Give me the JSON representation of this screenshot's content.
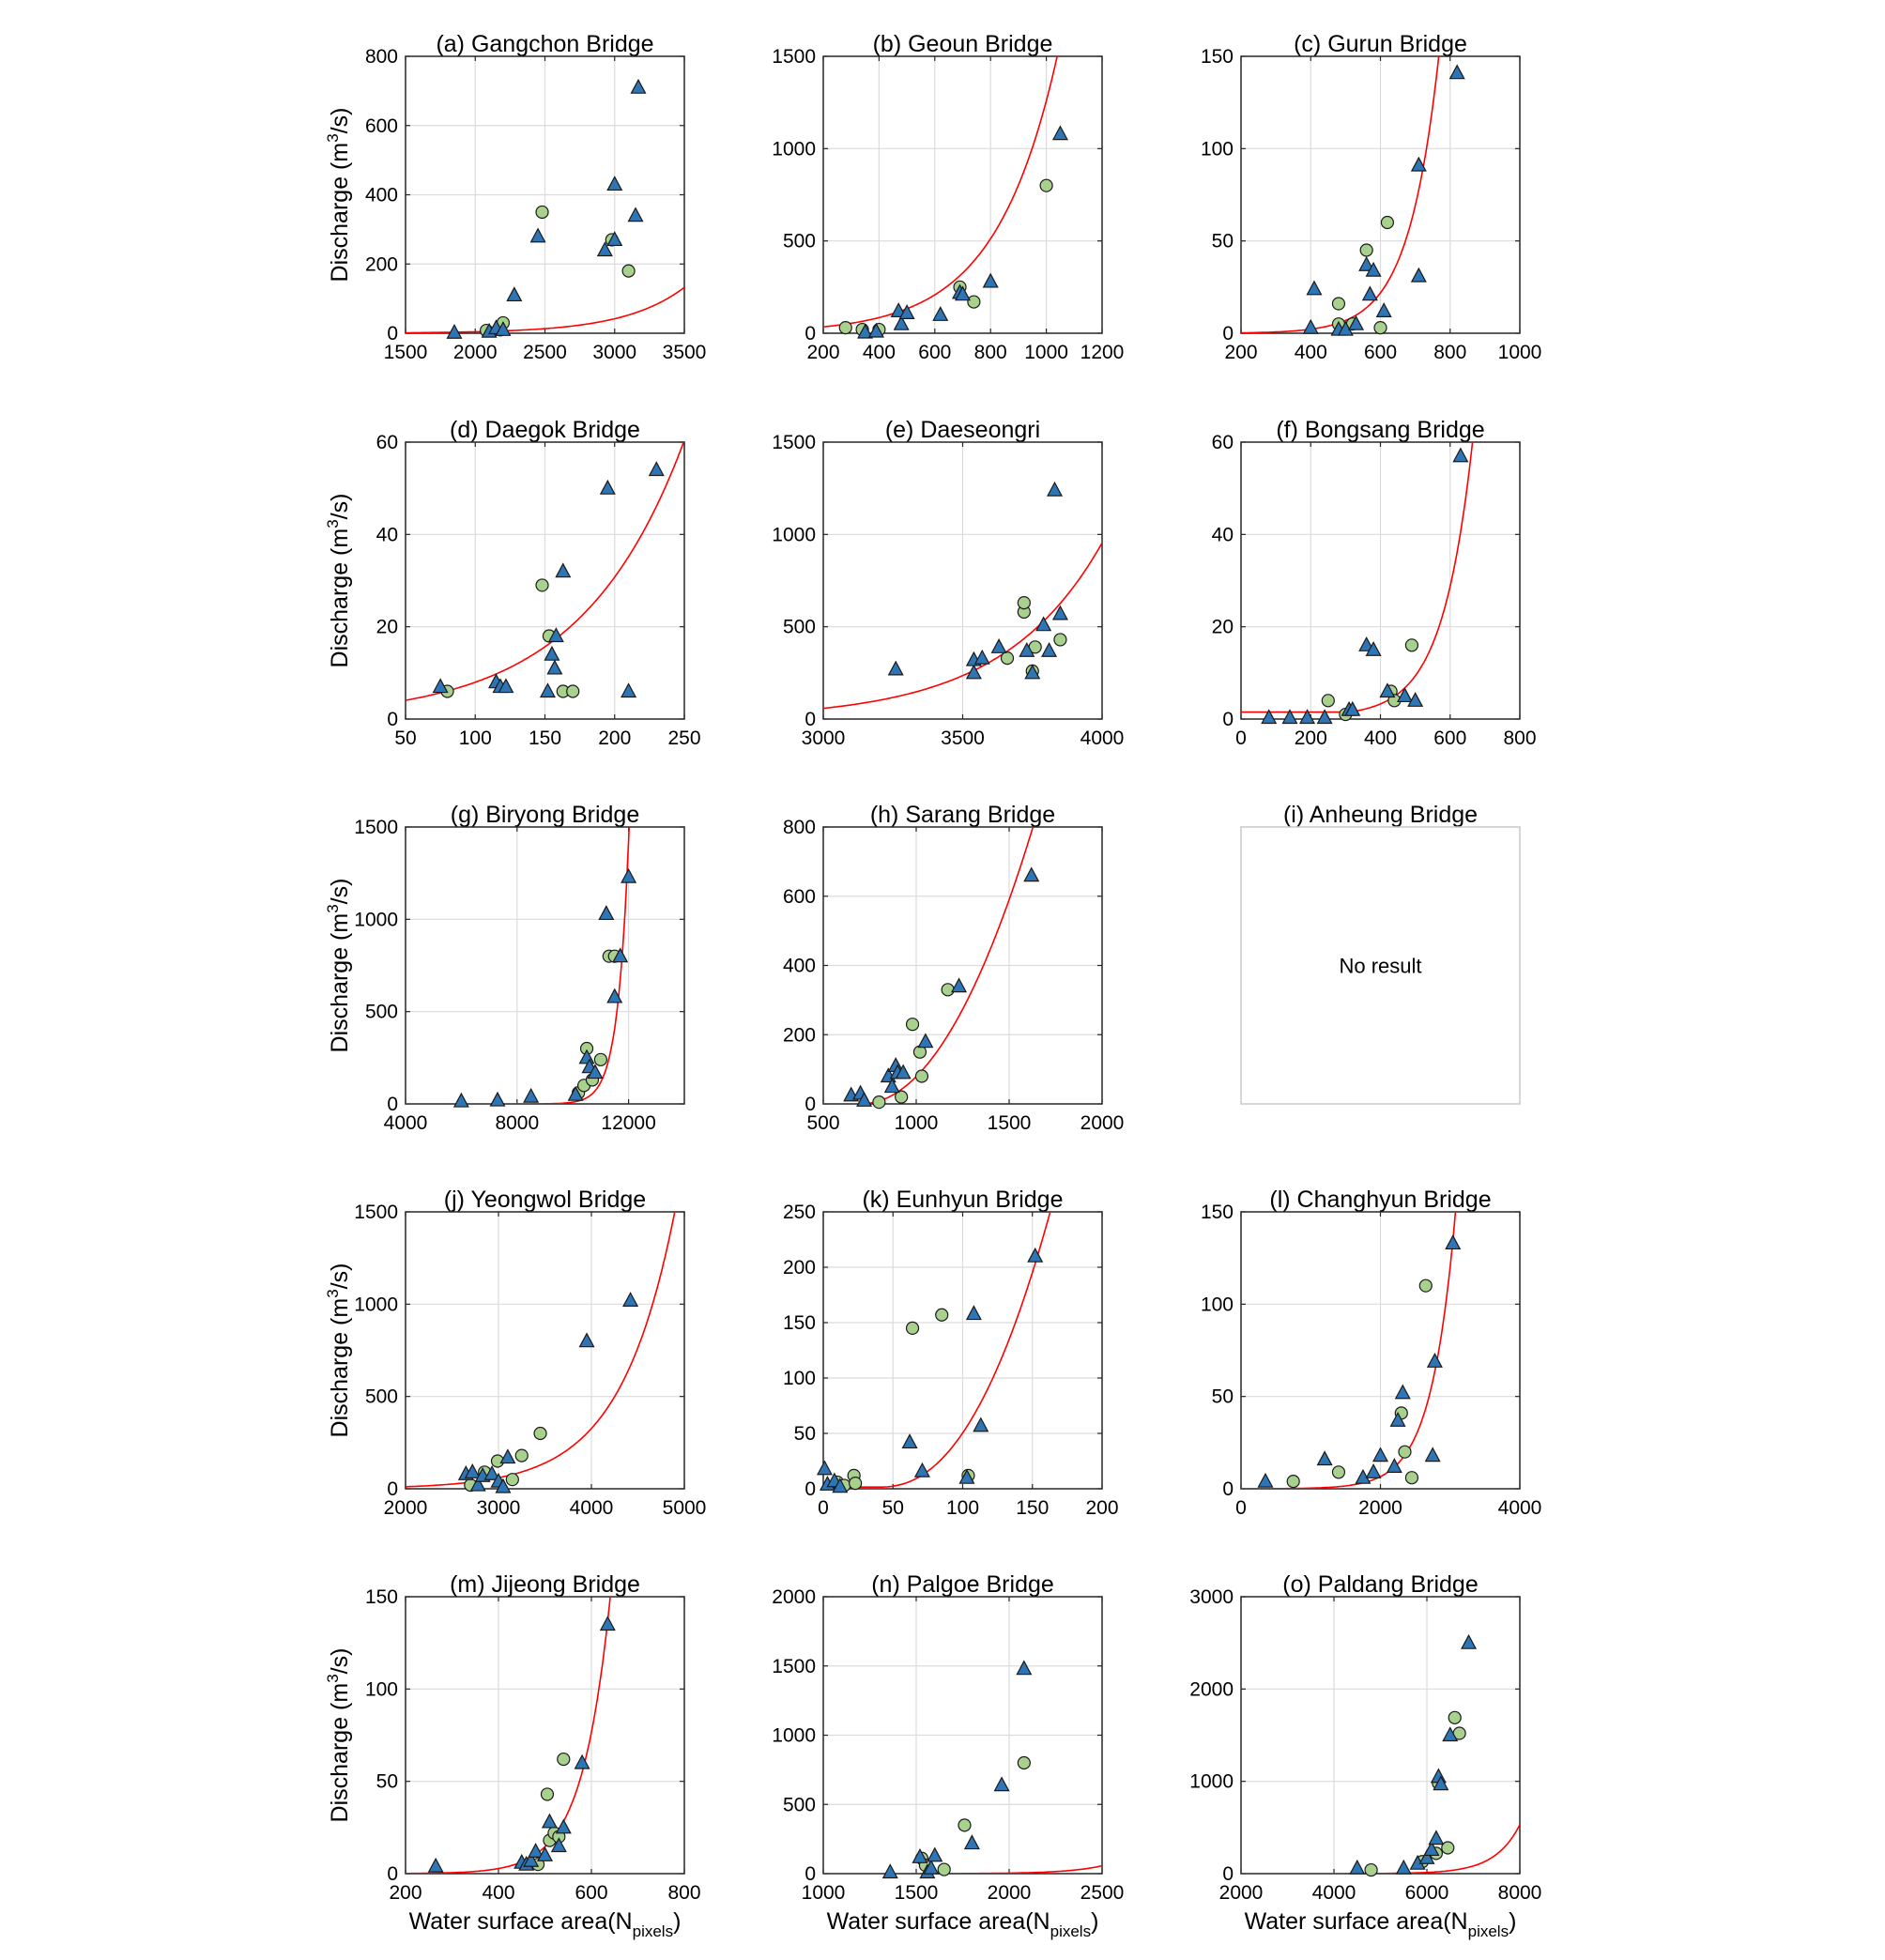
{
  "figure": {
    "ylabel_main": "Discharge (m",
    "ylabel_sup": "3",
    "ylabel_end": "/s)",
    "xlabel_main": "Water surface area(N",
    "xlabel_sub": "pixels",
    "xlabel_end": ")",
    "empty_message": "No result",
    "colors": {
      "triangle": "#2e75b6",
      "circle": "#a9d18e",
      "curve": "#ff0000",
      "grid": "#dcdcdc"
    }
  },
  "chart_data": [
    {
      "title": "(a) Gangchon Bridge",
      "type": "scatter",
      "xlim": [
        1500,
        3500
      ],
      "ylim": [
        0,
        800
      ],
      "xticks": [
        1500,
        2000,
        2500,
        3000,
        3500
      ],
      "yticks": [
        0,
        200,
        400,
        600,
        800
      ],
      "grid": true,
      "triangles": [
        [
          1850,
          2
        ],
        [
          2100,
          5
        ],
        [
          2150,
          15
        ],
        [
          2200,
          10
        ],
        [
          2280,
          110
        ],
        [
          2450,
          280
        ],
        [
          2930,
          240
        ],
        [
          3000,
          430
        ],
        [
          3000,
          270
        ],
        [
          3150,
          340
        ],
        [
          3170,
          710
        ]
      ],
      "circles": [
        [
          2080,
          8
        ],
        [
          2180,
          10
        ],
        [
          2200,
          30
        ],
        [
          2480,
          350
        ],
        [
          2980,
          270
        ],
        [
          3100,
          180
        ]
      ],
      "curve": {
        "a": 1.33,
        "b": 0.0023,
        "x0": 1500
      }
    },
    {
      "title": "(b) Geoun Bridge",
      "type": "scatter",
      "xlim": [
        200,
        1200
      ],
      "ylim": [
        0,
        1500
      ],
      "xticks": [
        200,
        400,
        600,
        800,
        1000,
        1200
      ],
      "yticks": [
        0,
        500,
        1000,
        1500
      ],
      "grid": true,
      "triangles": [
        [
          350,
          5
        ],
        [
          390,
          10
        ],
        [
          470,
          120
        ],
        [
          480,
          50
        ],
        [
          500,
          110
        ],
        [
          620,
          100
        ],
        [
          690,
          220
        ],
        [
          700,
          210
        ],
        [
          800,
          280
        ],
        [
          1050,
          1080
        ]
      ],
      "circles": [
        [
          280,
          30
        ],
        [
          340,
          20
        ],
        [
          400,
          20
        ],
        [
          690,
          250
        ],
        [
          740,
          170
        ],
        [
          1000,
          800
        ]
      ],
      "curve": {
        "a": 34.4,
        "b": 0.0045,
        "x0": 200
      }
    },
    {
      "title": "(c) Gurun Bridge",
      "type": "scatter",
      "xlim": [
        200,
        1000
      ],
      "ylim": [
        0,
        150
      ],
      "xticks": [
        200,
        400,
        600,
        800,
        1000
      ],
      "yticks": [
        0,
        50,
        100,
        150
      ],
      "grid": true,
      "triangles": [
        [
          400,
          3
        ],
        [
          410,
          24
        ],
        [
          480,
          2
        ],
        [
          500,
          2
        ],
        [
          530,
          5
        ],
        [
          560,
          37
        ],
        [
          570,
          21
        ],
        [
          580,
          34
        ],
        [
          610,
          12
        ],
        [
          710,
          91
        ],
        [
          710,
          31
        ],
        [
          820,
          141
        ]
      ],
      "circles": [
        [
          480,
          16
        ],
        [
          480,
          5
        ],
        [
          520,
          5
        ],
        [
          560,
          45
        ],
        [
          600,
          3
        ],
        [
          620,
          60
        ]
      ],
      "curve": {
        "a": 0.22,
        "b": 0.0115,
        "x0": 200
      }
    },
    {
      "title": "(d) Daegok Bridge",
      "type": "scatter",
      "xlim": [
        50,
        250
      ],
      "ylim": [
        0,
        60
      ],
      "xticks": [
        50,
        100,
        150,
        200,
        250
      ],
      "yticks": [
        0,
        20,
        40,
        60
      ],
      "grid": true,
      "triangles": [
        [
          75,
          7
        ],
        [
          115,
          8
        ],
        [
          118,
          7
        ],
        [
          122,
          7
        ],
        [
          152,
          6
        ],
        [
          155,
          14
        ],
        [
          157,
          11
        ],
        [
          158,
          18
        ],
        [
          163,
          32
        ],
        [
          195,
          50
        ],
        [
          210,
          6
        ],
        [
          230,
          54
        ]
      ],
      "circles": [
        [
          80,
          6
        ],
        [
          148,
          29
        ],
        [
          153,
          18
        ],
        [
          163,
          6
        ],
        [
          170,
          6
        ]
      ],
      "curve": {
        "a": 4.06,
        "b": 0.0135,
        "x0": 50
      }
    },
    {
      "title": "(e) Daeseongri",
      "type": "scatter",
      "xlim": [
        3000,
        4000
      ],
      "ylim": [
        0,
        1500
      ],
      "xticks": [
        3000,
        3500,
        4000
      ],
      "yticks": [
        0,
        500,
        1000,
        1500
      ],
      "grid": true,
      "triangles": [
        [
          3260,
          270
        ],
        [
          3540,
          250
        ],
        [
          3540,
          320
        ],
        [
          3570,
          330
        ],
        [
          3630,
          390
        ],
        [
          3730,
          370
        ],
        [
          3750,
          250
        ],
        [
          3790,
          510
        ],
        [
          3810,
          370
        ],
        [
          3830,
          1240
        ],
        [
          3850,
          570
        ]
      ],
      "circles": [
        [
          3660,
          330
        ],
        [
          3720,
          580
        ],
        [
          3720,
          630
        ],
        [
          3750,
          260
        ],
        [
          3760,
          390
        ],
        [
          3850,
          430
        ]
      ],
      "curve": {
        "a": 58,
        "b": 0.0028,
        "x0": 3000
      }
    },
    {
      "title": "(f) Bongsang Bridge",
      "type": "scatter",
      "xlim": [
        0,
        800
      ],
      "ylim": [
        0,
        60
      ],
      "xticks": [
        0,
        200,
        400,
        600,
        800
      ],
      "yticks": [
        0,
        20,
        40,
        60
      ],
      "grid": true,
      "triangles": [
        [
          80,
          0.3
        ],
        [
          140,
          0.3
        ],
        [
          190,
          0.3
        ],
        [
          240,
          0.3
        ],
        [
          310,
          2
        ],
        [
          320,
          2
        ],
        [
          360,
          16
        ],
        [
          380,
          15
        ],
        [
          420,
          6
        ],
        [
          470,
          5
        ],
        [
          500,
          4
        ],
        [
          630,
          57
        ]
      ],
      "circles": [
        [
          250,
          4
        ],
        [
          300,
          1
        ],
        [
          430,
          6
        ],
        [
          440,
          4
        ],
        [
          490,
          16
        ]
      ],
      "curve": {
        "a": 1.5,
        "b": 0.0116,
        "x0": 0,
        "offset_x": 312
      }
    },
    {
      "title": "(g) Biryong Bridge",
      "type": "scatter",
      "xlim": [
        4000,
        14000
      ],
      "ylim": [
        0,
        1500
      ],
      "xticks": [
        4000,
        8000,
        12000
      ],
      "yticks": [
        0,
        500,
        1000,
        1500
      ],
      "grid": true,
      "triangles": [
        [
          6000,
          15
        ],
        [
          7300,
          20
        ],
        [
          8500,
          40
        ],
        [
          10100,
          50
        ],
        [
          10500,
          250
        ],
        [
          10600,
          200
        ],
        [
          10800,
          170
        ],
        [
          11200,
          1030
        ],
        [
          11500,
          580
        ],
        [
          11700,
          800
        ],
        [
          12000,
          1230
        ]
      ],
      "circles": [
        [
          10200,
          60
        ],
        [
          10400,
          100
        ],
        [
          10500,
          300
        ],
        [
          10700,
          130
        ],
        [
          11000,
          240
        ],
        [
          11300,
          800
        ],
        [
          11500,
          800
        ]
      ],
      "curve": {
        "a": 0.29,
        "b": 0.0025,
        "x0": 8600
      }
    },
    {
      "title": "(h) Sarang Bridge",
      "type": "scatter",
      "xlim": [
        500,
        2000
      ],
      "ylim": [
        0,
        800
      ],
      "xticks": [
        500,
        1000,
        1500,
        2000
      ],
      "yticks": [
        0,
        200,
        400,
        600,
        800
      ],
      "grid": true,
      "triangles": [
        [
          650,
          25
        ],
        [
          700,
          30
        ],
        [
          720,
          10
        ],
        [
          850,
          80
        ],
        [
          870,
          50
        ],
        [
          890,
          110
        ],
        [
          900,
          90
        ],
        [
          930,
          90
        ],
        [
          1050,
          180
        ],
        [
          1230,
          340
        ],
        [
          1620,
          660
        ]
      ],
      "circles": [
        [
          800,
          5
        ],
        [
          920,
          20
        ],
        [
          980,
          230
        ],
        [
          1020,
          150
        ],
        [
          1030,
          80
        ],
        [
          1170,
          330
        ]
      ],
      "curve": {
        "a": 0,
        "b": 0,
        "x0": 0,
        "poly": [
          700,
          1750
        ]
      }
    },
    {
      "title": "(i) Anheung Bridge",
      "type": "empty",
      "no_result": "No result"
    },
    {
      "title": "(j) Yeongwol Bridge",
      "type": "scatter",
      "xlim": [
        2000,
        5000
      ],
      "ylim": [
        0,
        1500
      ],
      "xticks": [
        2000,
        3000,
        4000,
        5000
      ],
      "yticks": [
        0,
        500,
        1000,
        1500
      ],
      "grid": true,
      "triangles": [
        [
          2650,
          80
        ],
        [
          2720,
          90
        ],
        [
          2780,
          20
        ],
        [
          2830,
          70
        ],
        [
          2930,
          80
        ],
        [
          3000,
          40
        ],
        [
          3050,
          10
        ],
        [
          3100,
          170
        ],
        [
          3950,
          800
        ],
        [
          4420,
          1020
        ]
      ],
      "circles": [
        [
          2700,
          20
        ],
        [
          2850,
          90
        ],
        [
          2990,
          150
        ],
        [
          3150,
          50
        ],
        [
          3250,
          180
        ],
        [
          3450,
          300
        ]
      ],
      "curve": {
        "a": 10.9,
        "b": 0.0017,
        "x0": 2000
      }
    },
    {
      "title": "(k) Eunhyun Bridge",
      "type": "scatter",
      "xlim": [
        0,
        200
      ],
      "ylim": [
        0,
        250
      ],
      "xticks": [
        0,
        50,
        100,
        150,
        200
      ],
      "yticks": [
        0,
        50,
        100,
        150,
        200,
        250
      ],
      "grid": true,
      "triangles": [
        [
          1,
          18
        ],
        [
          3,
          4
        ],
        [
          8,
          7
        ],
        [
          12,
          2
        ],
        [
          62,
          42
        ],
        [
          71,
          16
        ],
        [
          103,
          10
        ],
        [
          108,
          158
        ],
        [
          113,
          57
        ],
        [
          152,
          210
        ]
      ],
      "circles": [
        [
          10,
          6
        ],
        [
          15,
          3
        ],
        [
          22,
          12
        ],
        [
          23,
          5
        ],
        [
          64,
          145
        ],
        [
          85,
          157
        ],
        [
          104,
          12
        ]
      ],
      "curve": {
        "a": 0,
        "b": 0,
        "x0": 0,
        "poly_k": true
      }
    },
    {
      "title": "(l) Changhyun Bridge",
      "type": "scatter",
      "xlim": [
        0,
        4000
      ],
      "ylim": [
        0,
        150
      ],
      "xticks": [
        0,
        2000,
        4000
      ],
      "yticks": [
        0,
        50,
        100,
        150
      ],
      "grid": true,
      "triangles": [
        [
          350,
          4
        ],
        [
          1200,
          16
        ],
        [
          1750,
          6
        ],
        [
          1900,
          9
        ],
        [
          2000,
          18
        ],
        [
          2200,
          12
        ],
        [
          2250,
          37
        ],
        [
          2320,
          52
        ],
        [
          2750,
          18
        ],
        [
          2780,
          69
        ],
        [
          3040,
          133
        ]
      ],
      "circles": [
        [
          750,
          4
        ],
        [
          1400,
          9
        ],
        [
          2300,
          41
        ],
        [
          2350,
          20
        ],
        [
          2450,
          6
        ],
        [
          2650,
          110
        ]
      ],
      "curve": {
        "a": 0.02,
        "b": 0.0029,
        "x0": 0
      }
    },
    {
      "title": "(m) Jijeong Bridge",
      "type": "scatter",
      "xlim": [
        200,
        800
      ],
      "ylim": [
        0,
        150
      ],
      "xticks": [
        200,
        400,
        600,
        800
      ],
      "yticks": [
        0,
        50,
        100,
        150
      ],
      "grid": true,
      "triangles": [
        [
          265,
          4
        ],
        [
          450,
          6
        ],
        [
          460,
          5
        ],
        [
          470,
          7
        ],
        [
          480,
          12
        ],
        [
          500,
          10
        ],
        [
          510,
          28
        ],
        [
          530,
          15
        ],
        [
          540,
          25
        ],
        [
          580,
          60
        ],
        [
          635,
          135
        ]
      ],
      "circles": [
        [
          485,
          5
        ],
        [
          505,
          43
        ],
        [
          510,
          18
        ],
        [
          520,
          22
        ],
        [
          530,
          20
        ],
        [
          540,
          62
        ]
      ],
      "curve": {
        "a": 0.1,
        "b": 0.0166,
        "x0": 200
      }
    },
    {
      "title": "(n) Palgoe Bridge",
      "type": "scatter",
      "xlim": [
        1000,
        2500
      ],
      "ylim": [
        0,
        2000
      ],
      "xticks": [
        1000,
        1500,
        2000,
        2500
      ],
      "yticks": [
        0,
        500,
        1000,
        1500,
        2000
      ],
      "grid": true,
      "triangles": [
        [
          1360,
          10
        ],
        [
          1520,
          120
        ],
        [
          1560,
          10
        ],
        [
          1580,
          40
        ],
        [
          1600,
          130
        ],
        [
          1800,
          220
        ],
        [
          1960,
          640
        ],
        [
          2080,
          1480
        ]
      ],
      "circles": [
        [
          1530,
          110
        ],
        [
          1550,
          60
        ],
        [
          1650,
          30
        ],
        [
          1760,
          350
        ],
        [
          2080,
          800
        ]
      ],
      "curve": {
        "a": 0.02,
        "b": 0.0053,
        "x0": 1000
      }
    },
    {
      "title": "(o) Paldang Bridge",
      "type": "scatter",
      "xlim": [
        2000,
        8000
      ],
      "ylim": [
        0,
        3000
      ],
      "xticks": [
        2000,
        4000,
        6000,
        8000
      ],
      "yticks": [
        0,
        1000,
        2000,
        3000
      ],
      "grid": true,
      "triangles": [
        [
          4500,
          60
        ],
        [
          5500,
          60
        ],
        [
          5800,
          110
        ],
        [
          6000,
          170
        ],
        [
          6100,
          260
        ],
        [
          6200,
          380
        ],
        [
          6250,
          1050
        ],
        [
          6300,
          970
        ],
        [
          6500,
          1500
        ],
        [
          6900,
          2500
        ]
      ],
      "circles": [
        [
          4800,
          40
        ],
        [
          5900,
          130
        ],
        [
          6200,
          220
        ],
        [
          6250,
          980
        ],
        [
          6450,
          280
        ],
        [
          6600,
          1690
        ],
        [
          6700,
          1520
        ]
      ],
      "curve": {
        "a": 0.008,
        "b": 0.00185,
        "x0": 2000
      }
    }
  ]
}
